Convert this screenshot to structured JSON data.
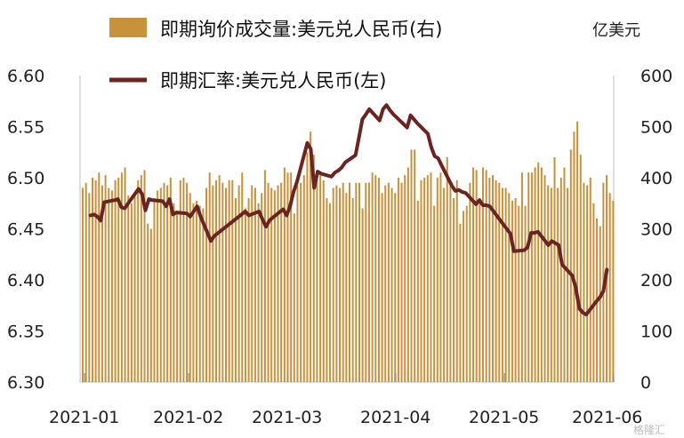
{
  "chart_data": {
    "type": "bar+line",
    "title": "",
    "left_axis": {
      "min": 6.3,
      "max": 6.6,
      "ticks": [
        "6.60",
        "6.55",
        "6.50",
        "6.45",
        "6.40",
        "6.35",
        "6.30"
      ]
    },
    "right_axis": {
      "min": 0,
      "max": 600,
      "unit": "亿美元",
      "ticks": [
        "600",
        "500",
        "400",
        "300",
        "200",
        "100",
        "0"
      ]
    },
    "x_axis": {
      "ticks": [
        "2021-01",
        "2021-02",
        "2021-03",
        "2021-04",
        "2021-05",
        "2021-06"
      ]
    },
    "legend": {
      "bar_label": "即期询价成交量:美元兑人民币(右)",
      "line_label": "即期汇率:美元兑人民币(左)",
      "position": "top"
    },
    "colors": {
      "bar": "#c8923a",
      "line": "#6b2420",
      "legend_bar": "#c8923a",
      "axis": "#bfbfbf"
    },
    "bars": {
      "series_name": "即期询价成交量:美元兑人民币(右)",
      "axis": "right",
      "values": [
        380,
        390,
        370,
        400,
        395,
        410,
        385,
        405,
        380,
        375,
        395,
        400,
        410,
        420,
        365,
        350,
        370,
        395,
        405,
        415,
        310,
        300,
        360,
        375,
        380,
        390,
        385,
        400,
        350,
        330,
        395,
        400,
        390,
        370,
        350,
        355,
        345,
        340,
        380,
        410,
        385,
        395,
        405,
        390,
        380,
        395,
        395,
        360,
        385,
        410,
        340,
        360,
        385,
        380,
        350,
        370,
        415,
        390,
        380,
        375,
        385,
        390,
        420,
        410,
        410,
        330,
        385,
        390,
        405,
        450,
        490,
        445,
        400,
        410,
        395,
        360,
        350,
        380,
        385,
        380,
        390,
        370,
        390,
        360,
        390,
        390,
        340,
        390,
        390,
        410,
        405,
        400,
        370,
        385,
        390,
        380,
        370,
        400,
        390,
        405,
        420,
        455,
        455,
        355,
        395,
        400,
        405,
        410,
        345,
        400,
        410,
        380,
        440,
        390,
        360,
        395,
        310,
        335,
        345,
        390,
        420,
        415,
        360,
        420,
        415,
        400,
        405,
        395,
        390,
        380,
        380,
        370,
        355,
        360,
        345,
        410,
        345,
        410,
        410,
        420,
        430,
        420,
        405,
        385,
        380,
        440,
        380,
        400,
        420,
        380,
        455,
        490,
        510,
        445,
        390,
        385,
        400,
        350,
        320,
        305,
        390,
        405,
        370,
        355
      ],
      "raw_approx_note": ""
    },
    "line": {
      "series_name": "即期汇率:美元兑人民币(左)",
      "axis": "left",
      "points": [
        [
          "2021-01-04",
          6.463
        ],
        [
          "2021-01-05",
          6.464
        ],
        [
          "2021-01-06",
          6.462
        ],
        [
          "2021-01-07",
          6.458
        ],
        [
          "2021-01-08",
          6.476
        ],
        [
          "2021-01-11",
          6.478
        ],
        [
          "2021-01-12",
          6.479
        ],
        [
          "2021-01-13",
          6.471
        ],
        [
          "2021-01-14",
          6.47
        ],
        [
          "2021-01-15",
          6.475
        ],
        [
          "2021-01-18",
          6.489
        ],
        [
          "2021-01-19",
          6.484
        ],
        [
          "2021-01-20",
          6.468
        ],
        [
          "2021-01-21",
          6.479
        ],
        [
          "2021-01-22",
          6.478
        ],
        [
          "2021-01-25",
          6.477
        ],
        [
          "2021-01-26",
          6.472
        ],
        [
          "2021-01-27",
          6.479
        ],
        [
          "2021-01-28",
          6.464
        ],
        [
          "2021-01-29",
          6.466
        ],
        [
          "2021-02-01",
          6.465
        ],
        [
          "2021-02-02",
          6.462
        ],
        [
          "2021-02-03",
          6.467
        ],
        [
          "2021-02-04",
          6.472
        ],
        [
          "2021-02-05",
          6.462
        ],
        [
          "2021-02-08",
          6.438
        ],
        [
          "2021-02-09",
          6.443
        ],
        [
          "2021-02-18",
          6.467
        ],
        [
          "2021-02-19",
          6.463
        ],
        [
          "2021-02-22",
          6.467
        ],
        [
          "2021-02-23",
          6.459
        ],
        [
          "2021-02-24",
          6.452
        ],
        [
          "2021-02-25",
          6.458
        ],
        [
          "2021-02-26",
          6.461
        ],
        [
          "2021-03-01",
          6.469
        ],
        [
          "2021-03-02",
          6.463
        ],
        [
          "2021-03-03",
          6.472
        ],
        [
          "2021-03-04",
          6.486
        ],
        [
          "2021-03-05",
          6.496
        ],
        [
          "2021-03-08",
          6.534
        ],
        [
          "2021-03-09",
          6.528
        ],
        [
          "2021-03-10",
          6.49
        ],
        [
          "2021-03-11",
          6.506
        ],
        [
          "2021-03-12",
          6.504
        ],
        [
          "2021-03-15",
          6.501
        ],
        [
          "2021-03-16",
          6.505
        ],
        [
          "2021-03-17",
          6.507
        ],
        [
          "2021-03-18",
          6.51
        ],
        [
          "2021-03-19",
          6.515
        ],
        [
          "2021-03-22",
          6.522
        ],
        [
          "2021-03-23",
          6.539
        ],
        [
          "2021-03-24",
          6.557
        ],
        [
          "2021-03-25",
          6.562
        ],
        [
          "2021-03-26",
          6.567
        ],
        [
          "2021-03-29",
          6.556
        ],
        [
          "2021-03-30",
          6.567
        ],
        [
          "2021-03-31",
          6.571
        ],
        [
          "2021-04-01",
          6.566
        ],
        [
          "2021-04-02",
          6.562
        ],
        [
          "2021-04-06",
          6.549
        ],
        [
          "2021-04-07",
          6.561
        ],
        [
          "2021-04-08",
          6.557
        ],
        [
          "2021-04-09",
          6.553
        ],
        [
          "2021-04-12",
          6.543
        ],
        [
          "2021-04-13",
          6.53
        ],
        [
          "2021-04-14",
          6.521
        ],
        [
          "2021-04-15",
          6.519
        ],
        [
          "2021-04-16",
          6.512
        ],
        [
          "2021-04-19",
          6.492
        ],
        [
          "2021-04-20",
          6.487
        ],
        [
          "2021-04-21",
          6.488
        ],
        [
          "2021-04-22",
          6.486
        ],
        [
          "2021-04-23",
          6.485
        ],
        [
          "2021-04-26",
          6.474
        ],
        [
          "2021-04-27",
          6.478
        ],
        [
          "2021-04-28",
          6.473
        ],
        [
          "2021-04-29",
          6.473
        ],
        [
          "2021-04-30",
          6.472
        ],
        [
          "2021-05-06",
          6.445
        ],
        [
          "2021-05-07",
          6.428
        ],
        [
          "2021-05-10",
          6.429
        ],
        [
          "2021-05-11",
          6.432
        ],
        [
          "2021-05-12",
          6.446
        ],
        [
          "2021-05-13",
          6.446
        ],
        [
          "2021-05-14",
          6.447
        ],
        [
          "2021-05-17",
          6.434
        ],
        [
          "2021-05-18",
          6.438
        ],
        [
          "2021-05-19",
          6.436
        ],
        [
          "2021-05-20",
          6.434
        ],
        [
          "2021-05-21",
          6.415
        ],
        [
          "2021-05-24",
          6.404
        ],
        [
          "2021-05-25",
          6.392
        ],
        [
          "2021-05-26",
          6.372
        ],
        [
          "2021-05-27",
          6.368
        ],
        [
          "2021-05-28",
          6.366
        ],
        [
          "2021-05-31",
          6.379
        ],
        [
          "2021-06-01",
          6.383
        ],
        [
          "2021-06-02",
          6.389
        ],
        [
          "2021-06-03",
          6.41
        ]
      ]
    }
  },
  "watermark": "格隆汇"
}
